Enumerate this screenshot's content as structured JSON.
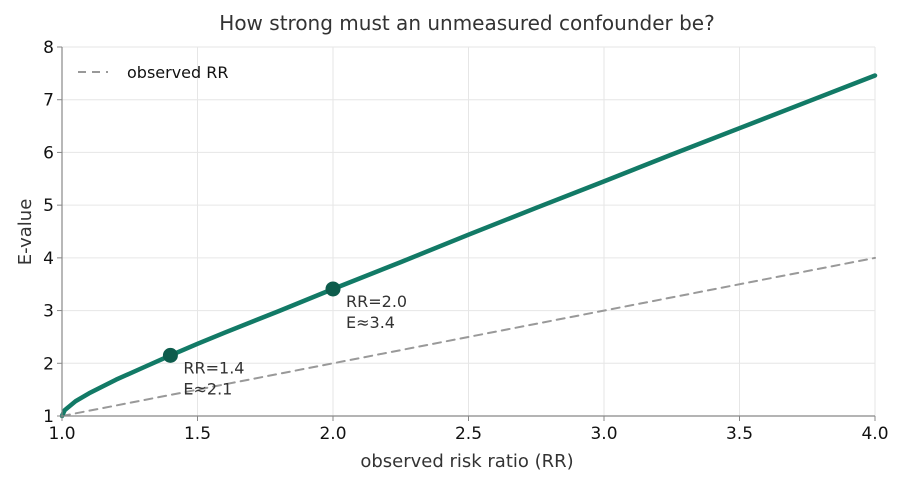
{
  "chart_data": {
    "type": "line",
    "title": "How strong must an unmeasured confounder be?",
    "xlabel": "observed risk ratio (RR)",
    "ylabel": "E-value",
    "xlim": [
      1.0,
      4.0
    ],
    "ylim": [
      1,
      8
    ],
    "xticks": [
      "1.0",
      "1.5",
      "2.0",
      "2.5",
      "3.0",
      "3.5",
      "4.0"
    ],
    "yticks": [
      "1",
      "2",
      "3",
      "4",
      "5",
      "6",
      "7",
      "8"
    ],
    "grid": true,
    "legend_position": "top-left",
    "series": [
      {
        "name": "",
        "style": "solid",
        "color": "#127a66",
        "x": [
          1.0,
          1.01,
          1.05,
          1.1,
          1.2,
          1.3,
          1.4,
          1.5,
          1.6,
          1.8,
          2.0,
          2.25,
          2.5,
          2.75,
          3.0,
          3.25,
          3.5,
          3.75,
          4.0
        ],
        "y": [
          1.0,
          1.11,
          1.28,
          1.43,
          1.69,
          1.92,
          2.15,
          2.37,
          2.58,
          2.99,
          3.41,
          3.92,
          4.44,
          4.95,
          5.45,
          5.96,
          6.46,
          6.96,
          7.46
        ]
      },
      {
        "name": "observed RR",
        "style": "dashed",
        "color": "#999999",
        "x": [
          1.0,
          4.0
        ],
        "y": [
          1.0,
          4.0
        ]
      }
    ],
    "points": [
      {
        "x": 1.4,
        "y": 2.15,
        "label_line1": "RR=1.4",
        "label_line2": "E≈2.1"
      },
      {
        "x": 2.0,
        "y": 3.41,
        "label_line1": "RR=2.0",
        "label_line2": "E≈3.4"
      }
    ],
    "colors": {
      "curve": "#127a66",
      "point": "#0d5c4c",
      "reference": "#999999"
    }
  }
}
